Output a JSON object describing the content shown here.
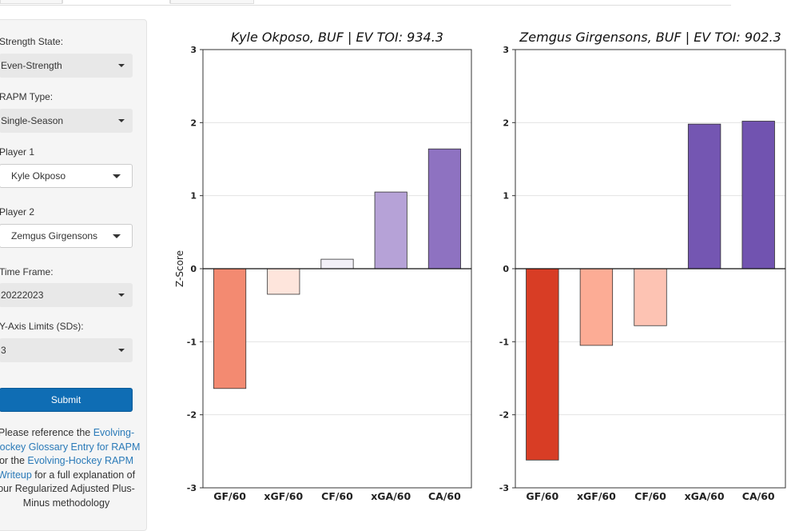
{
  "sidebar": {
    "strength_label": "Strength State:",
    "strength_value": "Even-Strength",
    "rapm_label": "RAPM Type:",
    "rapm_value": "Single-Season",
    "player1_label": "Player 1",
    "player1_value": "Kyle Okposo",
    "player2_label": "Player 2",
    "player2_value": "Zemgus Girgensons",
    "timeframe_label": "Time Frame:",
    "timeframe_value": "20222023",
    "axis_label": "Y-Axis Limits (SDs):",
    "axis_value": "3",
    "submit_label": "Submit",
    "note": {
      "t1": "Please reference the ",
      "link1": "Evolving-Hockey Glossary Entry for RAPM",
      "t2": " or the ",
      "link2": "Evolving-Hockey RAPM Writeup",
      "t3": " for a full explanation of our Regularized Adjusted Plus-Minus methodology"
    }
  },
  "chart_data": [
    {
      "type": "bar",
      "title": "Kyle Okposo, BUF  |  EV TOI: 934.3",
      "ylabel": "Z-Score",
      "categories": [
        "GF/60",
        "xGF/60",
        "CF/60",
        "xGA/60",
        "CA/60"
      ],
      "values": [
        -1.64,
        -0.35,
        0.13,
        1.05,
        1.64
      ],
      "colors": [
        "#f38a71",
        "#fee5dc",
        "#f2f0f7",
        "#b6a2d7",
        "#8e72c1"
      ],
      "ylim": [
        -3,
        3
      ],
      "yticks": [
        "-3",
        "-2",
        "-1",
        "0",
        "1",
        "2",
        "3"
      ],
      "grid": true,
      "legend": "none"
    },
    {
      "type": "bar",
      "title": "Zemgus Girgensons, BUF  |  EV TOI: 902.3",
      "ylabel": "",
      "categories": [
        "GF/60",
        "xGF/60",
        "CF/60",
        "xGA/60",
        "CA/60"
      ],
      "values": [
        -2.62,
        -1.05,
        -0.78,
        1.98,
        2.02
      ],
      "colors": [
        "#d83d25",
        "#fcac95",
        "#fdc3b3",
        "#7456b2",
        "#7153b0"
      ],
      "ylim": [
        -3,
        3
      ],
      "yticks": [
        "-3",
        "-2",
        "-1",
        "0",
        "1",
        "2",
        "3"
      ],
      "grid": true,
      "legend": "none"
    }
  ]
}
